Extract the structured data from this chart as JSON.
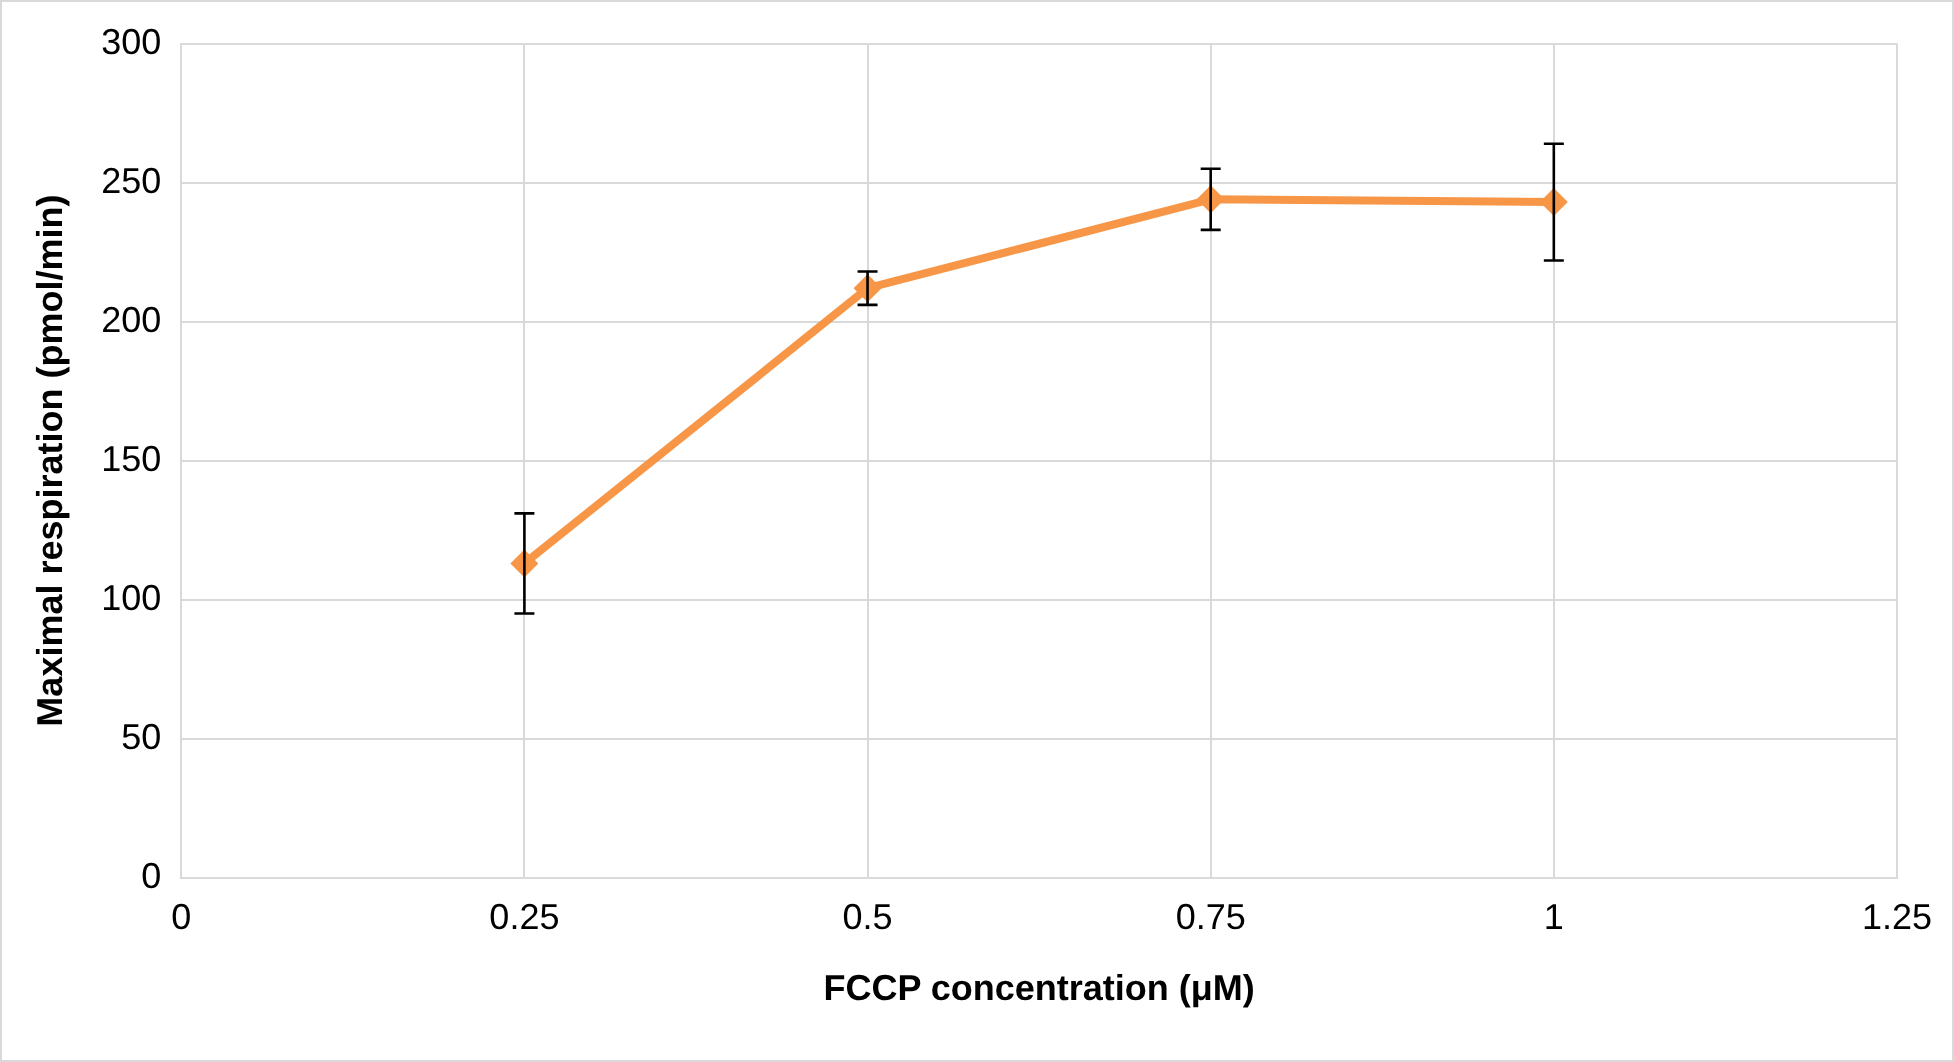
{
  "chart_data": {
    "type": "line",
    "xlabel": "FCCP concentration (μM)",
    "ylabel": "Maximal respiration (pmol/min)",
    "x": [
      0.25,
      0.5,
      0.75,
      1
    ],
    "series": [
      {
        "color": "#f79646",
        "values": [
          113,
          212,
          244,
          243
        ],
        "errors": [
          [
            95,
            131
          ],
          [
            206,
            218
          ],
          [
            233,
            255
          ],
          [
            222,
            264
          ]
        ]
      }
    ],
    "xlim": [
      0,
      1.25
    ],
    "xticks": [
      0,
      0.25,
      0.5,
      0.75,
      1,
      1.25
    ],
    "ylim": [
      0,
      300
    ],
    "yticks": [
      0,
      50,
      100,
      150,
      200,
      250,
      300
    ],
    "grid": true,
    "legend": false,
    "marker": "diamond",
    "line_style": "solid"
  }
}
